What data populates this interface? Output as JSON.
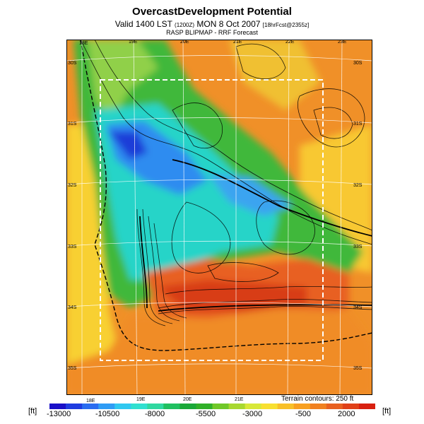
{
  "header": {
    "title": "OvercastDevelopment Potential",
    "valid_main": "Valid 1400 LST",
    "valid_small": "(1200Z)",
    "valid_date": "MON 8 Oct 2007",
    "valid_forecast": "[18hrFcst@2355z]",
    "subtitle": "RASP BLIPMAP - RRF Forecast"
  },
  "map": {
    "top_lon_labels": [
      "18E",
      "19E",
      "20E",
      "21E",
      "22E",
      "23E"
    ],
    "bottom_lon_labels": [
      "18E",
      "19E",
      "20E",
      "21E"
    ],
    "left_lat_labels": [
      "30S",
      "31S",
      "32S",
      "33S",
      "34S",
      "35S"
    ],
    "right_lat_labels": [
      "30S",
      "31S",
      "32S",
      "33S",
      "34S",
      "35S"
    ],
    "terrain_contours": "Terrain contours: 250 ft"
  },
  "colorbar": {
    "unit_left": "[ft]",
    "unit_right": "[ft]",
    "tick_labels": [
      "-13000",
      "-10500",
      "-8000",
      "-5500",
      "-3000",
      "-500",
      "2000"
    ],
    "colors": [
      "#1a10c8",
      "#1f3ce0",
      "#2a6cf0",
      "#2f9cf5",
      "#30c8f0",
      "#30e0d0",
      "#30d8a0",
      "#20c060",
      "#1aa838",
      "#30b028",
      "#70c828",
      "#a8d830",
      "#d8e838",
      "#f8e030",
      "#f8c028",
      "#f8a020",
      "#f08020",
      "#e86020",
      "#e04018",
      "#d82010"
    ]
  }
}
